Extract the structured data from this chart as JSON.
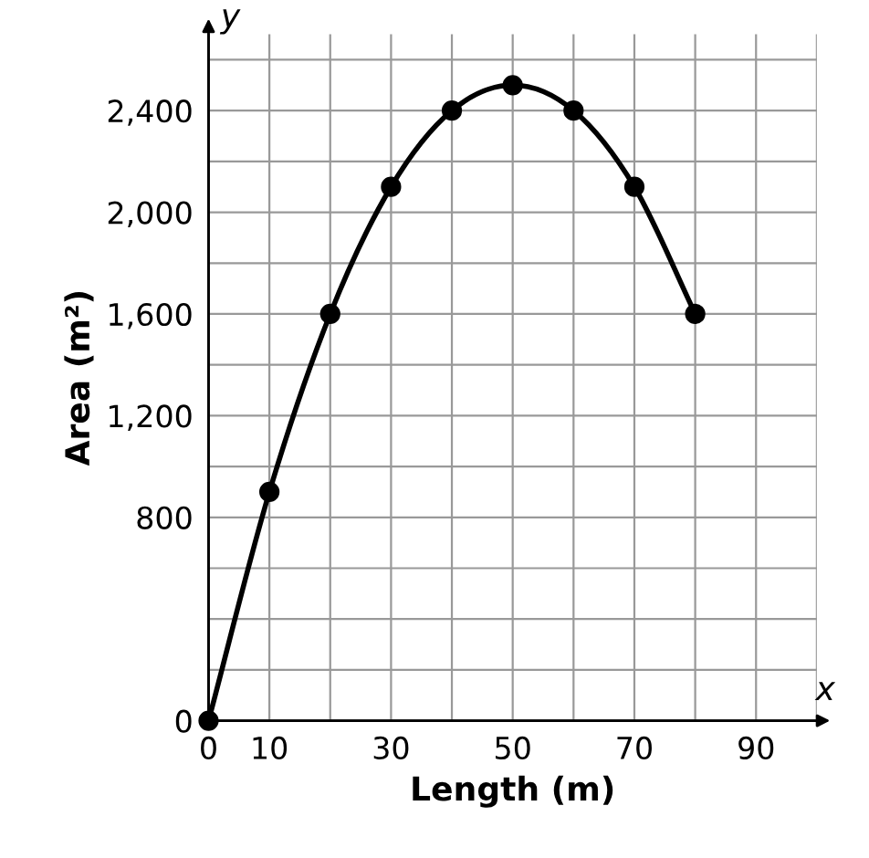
{
  "chart_data": {
    "type": "line",
    "xlabel": "Length (m)",
    "ylabel": "Area (m²)",
    "x": [
      0,
      10,
      20,
      30,
      40,
      50,
      60,
      70,
      80
    ],
    "series": [
      {
        "color": "#000000",
        "values": [
          0,
          900,
          1600,
          2100,
          2400,
          2500,
          2400,
          2100,
          1600
        ]
      }
    ],
    "marker": "circle",
    "line_style": "solid",
    "grid": true,
    "xlim": [
      0,
      100
    ],
    "ylim": [
      0,
      2700
    ],
    "xticks": [
      0,
      10,
      {
        "value": 20,
        "label": null
      },
      30,
      {
        "value": 40,
        "label": null
      },
      50,
      {
        "value": 60,
        "label": null
      },
      70,
      {
        "value": 80,
        "label": null
      },
      90,
      {
        "value": 100,
        "label": null
      }
    ],
    "yticks": [
      0,
      {
        "value": 200,
        "label": null
      },
      {
        "value": 400,
        "label": null
      },
      {
        "value": 600,
        "label": null
      },
      {
        "value": 800,
        "label": "800"
      },
      {
        "value": 1000,
        "label": null
      },
      {
        "value": 1200,
        "label": "1,200"
      },
      {
        "value": 1400,
        "label": null
      },
      {
        "value": 1600,
        "label": "1,600"
      },
      {
        "value": 1800,
        "label": null
      },
      {
        "value": 2000,
        "label": "2,000"
      },
      {
        "value": 2200,
        "label": null
      },
      {
        "value": 2400,
        "label": "2,400"
      },
      {
        "value": 2600,
        "label": null
      }
    ],
    "annotations": [
      "x",
      "y"
    ]
  }
}
